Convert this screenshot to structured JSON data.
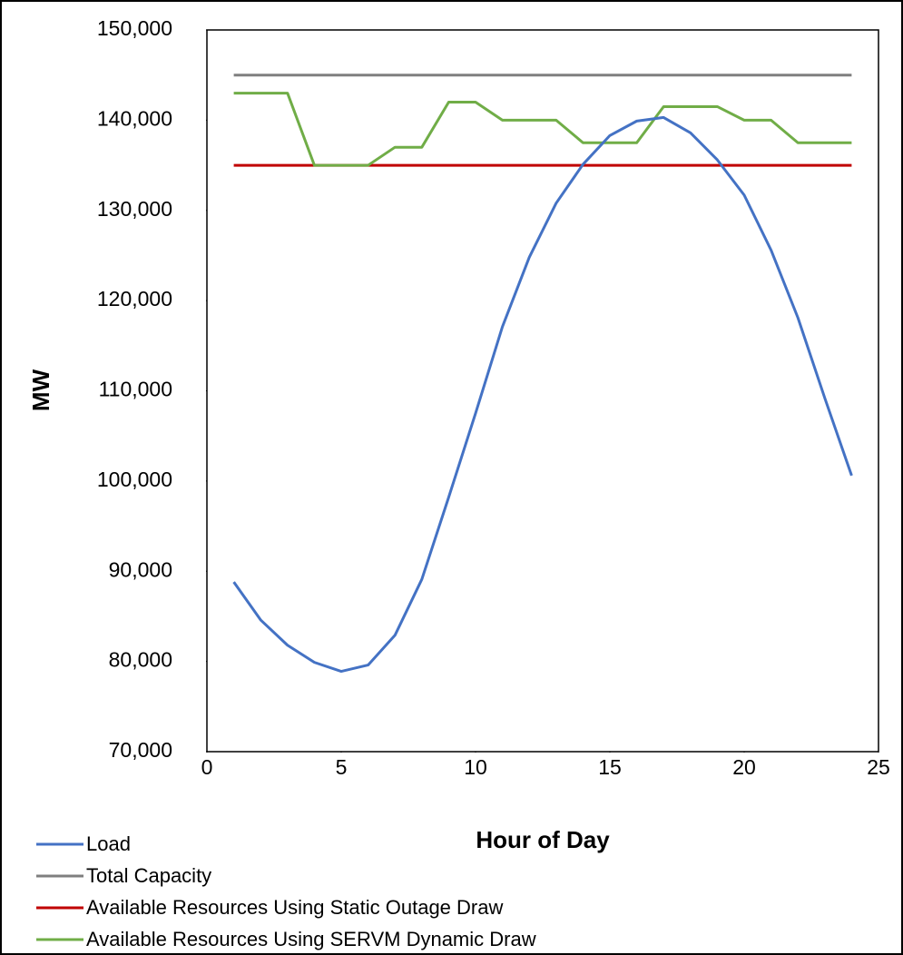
{
  "chart_data": {
    "type": "line",
    "x_label": "Hour of Day",
    "y_label": "MW",
    "x": [
      1,
      2,
      3,
      4,
      5,
      6,
      7,
      8,
      9,
      10,
      11,
      12,
      13,
      14,
      15,
      16,
      17,
      18,
      19,
      20,
      21,
      22,
      23,
      24
    ],
    "series": [
      {
        "name": "Load",
        "color": "#4472c4",
        "values": [
          88800,
          84600,
          81800,
          79900,
          78900,
          79600,
          82900,
          89100,
          98200,
          107500,
          117100,
          124800,
          130800,
          135100,
          138300,
          139900,
          140300,
          138600,
          135600,
          131700,
          125600,
          118100,
          109200,
          100600
        ]
      },
      {
        "name": "Total Capacity",
        "color": "#7f7f7f",
        "values": [
          145000,
          145000,
          145000,
          145000,
          145000,
          145000,
          145000,
          145000,
          145000,
          145000,
          145000,
          145000,
          145000,
          145000,
          145000,
          145000,
          145000,
          145000,
          145000,
          145000,
          145000,
          145000,
          145000,
          145000
        ]
      },
      {
        "name": "Available Resources Using Static Outage Draw",
        "color": "#c00000",
        "values": [
          135000,
          135000,
          135000,
          135000,
          135000,
          135000,
          135000,
          135000,
          135000,
          135000,
          135000,
          135000,
          135000,
          135000,
          135000,
          135000,
          135000,
          135000,
          135000,
          135000,
          135000,
          135000,
          135000,
          135000
        ]
      },
      {
        "name": "Available Resources Using SERVM Dynamic Draw",
        "color": "#70ad47",
        "values": [
          143000,
          143000,
          143000,
          135000,
          135000,
          135000,
          137000,
          137000,
          142000,
          142000,
          140000,
          140000,
          140000,
          137500,
          137500,
          137500,
          141500,
          141500,
          141500,
          140000,
          140000,
          137500,
          137500,
          137500
        ]
      }
    ],
    "xlim": [
      0,
      25
    ],
    "xticks": [
      0,
      5,
      10,
      15,
      20,
      25
    ],
    "ylim": [
      70000,
      150000
    ],
    "yticks": [
      {
        "value": 70000,
        "label": "70,000"
      },
      {
        "value": 80000,
        "label": "80,000"
      },
      {
        "value": 90000,
        "label": "90,000"
      },
      {
        "value": 100000,
        "label": "100,000"
      },
      {
        "value": 110000,
        "label": "110,000"
      },
      {
        "value": 120000,
        "label": "120,000"
      },
      {
        "value": 130000,
        "label": "130,000"
      },
      {
        "value": 140000,
        "label": "140,000"
      },
      {
        "value": 150000,
        "label": "150,000"
      }
    ],
    "grid": false,
    "legend": "bottom-left"
  }
}
